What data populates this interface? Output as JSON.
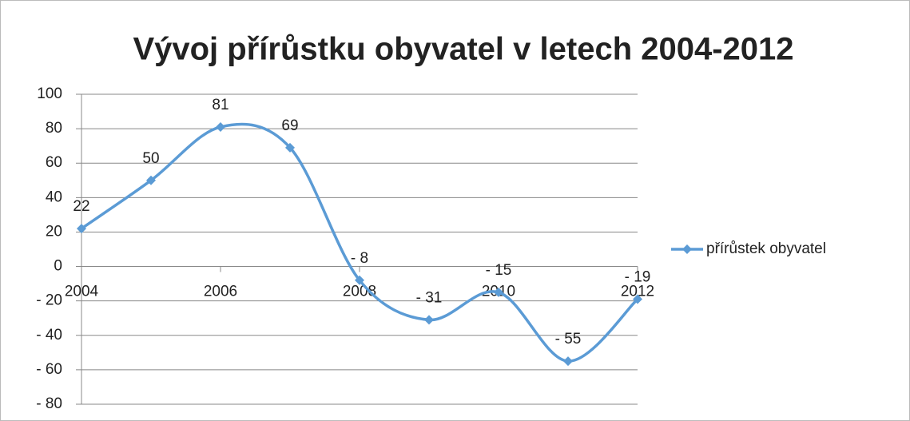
{
  "chart_data": {
    "type": "line",
    "title": "Vývoj přírůstku obyvatel v letech 2004-2012",
    "x": [
      2004,
      2005,
      2006,
      2007,
      2008,
      2009,
      2010,
      2011,
      2012
    ],
    "series": [
      {
        "name": "přírůstek obyvatel",
        "color": "#5b9bd5",
        "values": [
          22,
          50,
          81,
          69,
          -8,
          -31,
          -15,
          -55,
          -19
        ],
        "value_labels": [
          "22",
          "50",
          "81",
          "69",
          "- 8",
          "- 31",
          "- 15",
          "- 55",
          "- 19"
        ]
      }
    ],
    "xlim": [
      2004,
      2012
    ],
    "xticks": [
      2004,
      2006,
      2008,
      2010,
      2012
    ],
    "ylim": [
      -80,
      100
    ],
    "yticks": [
      100,
      80,
      60,
      40,
      20,
      0,
      {
        "value": -20,
        "label": "- 20"
      },
      {
        "value": -40,
        "label": "- 40"
      },
      {
        "value": -60,
        "label": "- 60"
      },
      {
        "value": -80,
        "label": "- 80"
      }
    ],
    "grid": true,
    "smooth": true,
    "legend": "right"
  }
}
